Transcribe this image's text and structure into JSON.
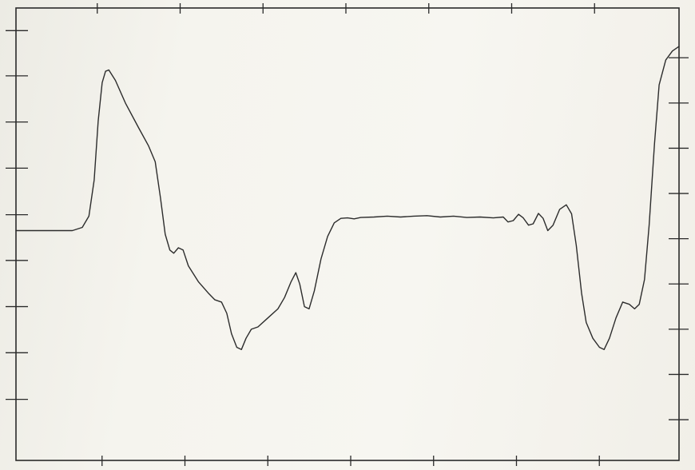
{
  "chart_data": {
    "type": "line",
    "title": "",
    "xlabel": "",
    "ylabel": "",
    "xlim": [
      0,
      100
    ],
    "ylim": [
      0,
      100
    ],
    "grid": false,
    "x_ticks_top": [
      12.5,
      25,
      37.5,
      50,
      62.5,
      75,
      87.5
    ],
    "x_ticks_bottom": [
      12.5,
      25,
      37.5,
      50,
      62.5,
      75,
      87.5
    ],
    "y_ticks_left": [
      13.5,
      23.8,
      34,
      44.2,
      54.3,
      64.6,
      74.8,
      85,
      95
    ],
    "y_ticks_right": [
      9,
      19,
      29,
      39,
      49,
      59,
      69,
      79,
      89
    ],
    "series": [
      {
        "color": "#2c2c2c",
        "points": [
          [
            0.0,
            50.8
          ],
          [
            5.0,
            50.8
          ],
          [
            8.5,
            50.8
          ],
          [
            10.0,
            51.5
          ],
          [
            11.0,
            54.0
          ],
          [
            11.8,
            62.0
          ],
          [
            12.4,
            75.0
          ],
          [
            13.0,
            83.5
          ],
          [
            13.5,
            86.0
          ],
          [
            14.0,
            86.3
          ],
          [
            15.0,
            84.0
          ],
          [
            16.5,
            79.0
          ],
          [
            18.5,
            73.5
          ],
          [
            20.0,
            69.5
          ],
          [
            21.0,
            66.0
          ],
          [
            21.8,
            58.0
          ],
          [
            22.5,
            50.0
          ],
          [
            23.2,
            46.5
          ],
          [
            23.8,
            45.8
          ],
          [
            24.5,
            47.0
          ],
          [
            25.2,
            46.5
          ],
          [
            26.0,
            43.0
          ],
          [
            27.5,
            39.5
          ],
          [
            29.0,
            37.0
          ],
          [
            30.0,
            35.5
          ],
          [
            31.0,
            35.0
          ],
          [
            31.8,
            32.5
          ],
          [
            32.5,
            28.0
          ],
          [
            33.3,
            25.0
          ],
          [
            34.0,
            24.5
          ],
          [
            34.7,
            27.0
          ],
          [
            35.5,
            29.0
          ],
          [
            36.5,
            29.5
          ],
          [
            38.0,
            31.5
          ],
          [
            39.5,
            33.5
          ],
          [
            40.5,
            36.0
          ],
          [
            41.5,
            39.5
          ],
          [
            42.2,
            41.5
          ],
          [
            42.8,
            39.0
          ],
          [
            43.5,
            34.0
          ],
          [
            44.2,
            33.5
          ],
          [
            45.0,
            37.5
          ],
          [
            46.0,
            44.5
          ],
          [
            47.0,
            49.5
          ],
          [
            48.0,
            52.5
          ],
          [
            49.0,
            53.5
          ],
          [
            50.0,
            53.6
          ],
          [
            51.0,
            53.4
          ],
          [
            52.0,
            53.7
          ],
          [
            54.0,
            53.8
          ],
          [
            56.0,
            54.0
          ],
          [
            58.0,
            53.8
          ],
          [
            60.0,
            54.0
          ],
          [
            62.0,
            54.1
          ],
          [
            64.0,
            53.8
          ],
          [
            66.0,
            54.0
          ],
          [
            68.0,
            53.7
          ],
          [
            70.0,
            53.8
          ],
          [
            72.0,
            53.6
          ],
          [
            73.5,
            53.8
          ],
          [
            74.2,
            52.7
          ],
          [
            75.0,
            53.0
          ],
          [
            75.8,
            54.4
          ],
          [
            76.5,
            53.6
          ],
          [
            77.3,
            52.0
          ],
          [
            78.0,
            52.3
          ],
          [
            78.8,
            54.6
          ],
          [
            79.5,
            53.5
          ],
          [
            80.2,
            50.8
          ],
          [
            81.0,
            52.0
          ],
          [
            82.0,
            55.5
          ],
          [
            83.0,
            56.5
          ],
          [
            83.8,
            54.5
          ],
          [
            84.5,
            47.5
          ],
          [
            85.3,
            37.0
          ],
          [
            86.0,
            30.5
          ],
          [
            87.0,
            27.0
          ],
          [
            88.0,
            25.0
          ],
          [
            88.7,
            24.5
          ],
          [
            89.5,
            27.0
          ],
          [
            90.5,
            31.5
          ],
          [
            91.5,
            35.0
          ],
          [
            92.5,
            34.5
          ],
          [
            93.3,
            33.5
          ],
          [
            94.0,
            34.5
          ],
          [
            94.8,
            40.0
          ],
          [
            95.5,
            52.0
          ],
          [
            96.3,
            70.0
          ],
          [
            97.0,
            83.0
          ],
          [
            98.0,
            88.5
          ],
          [
            99.0,
            90.5
          ],
          [
            100.0,
            91.5
          ]
        ]
      }
    ]
  }
}
